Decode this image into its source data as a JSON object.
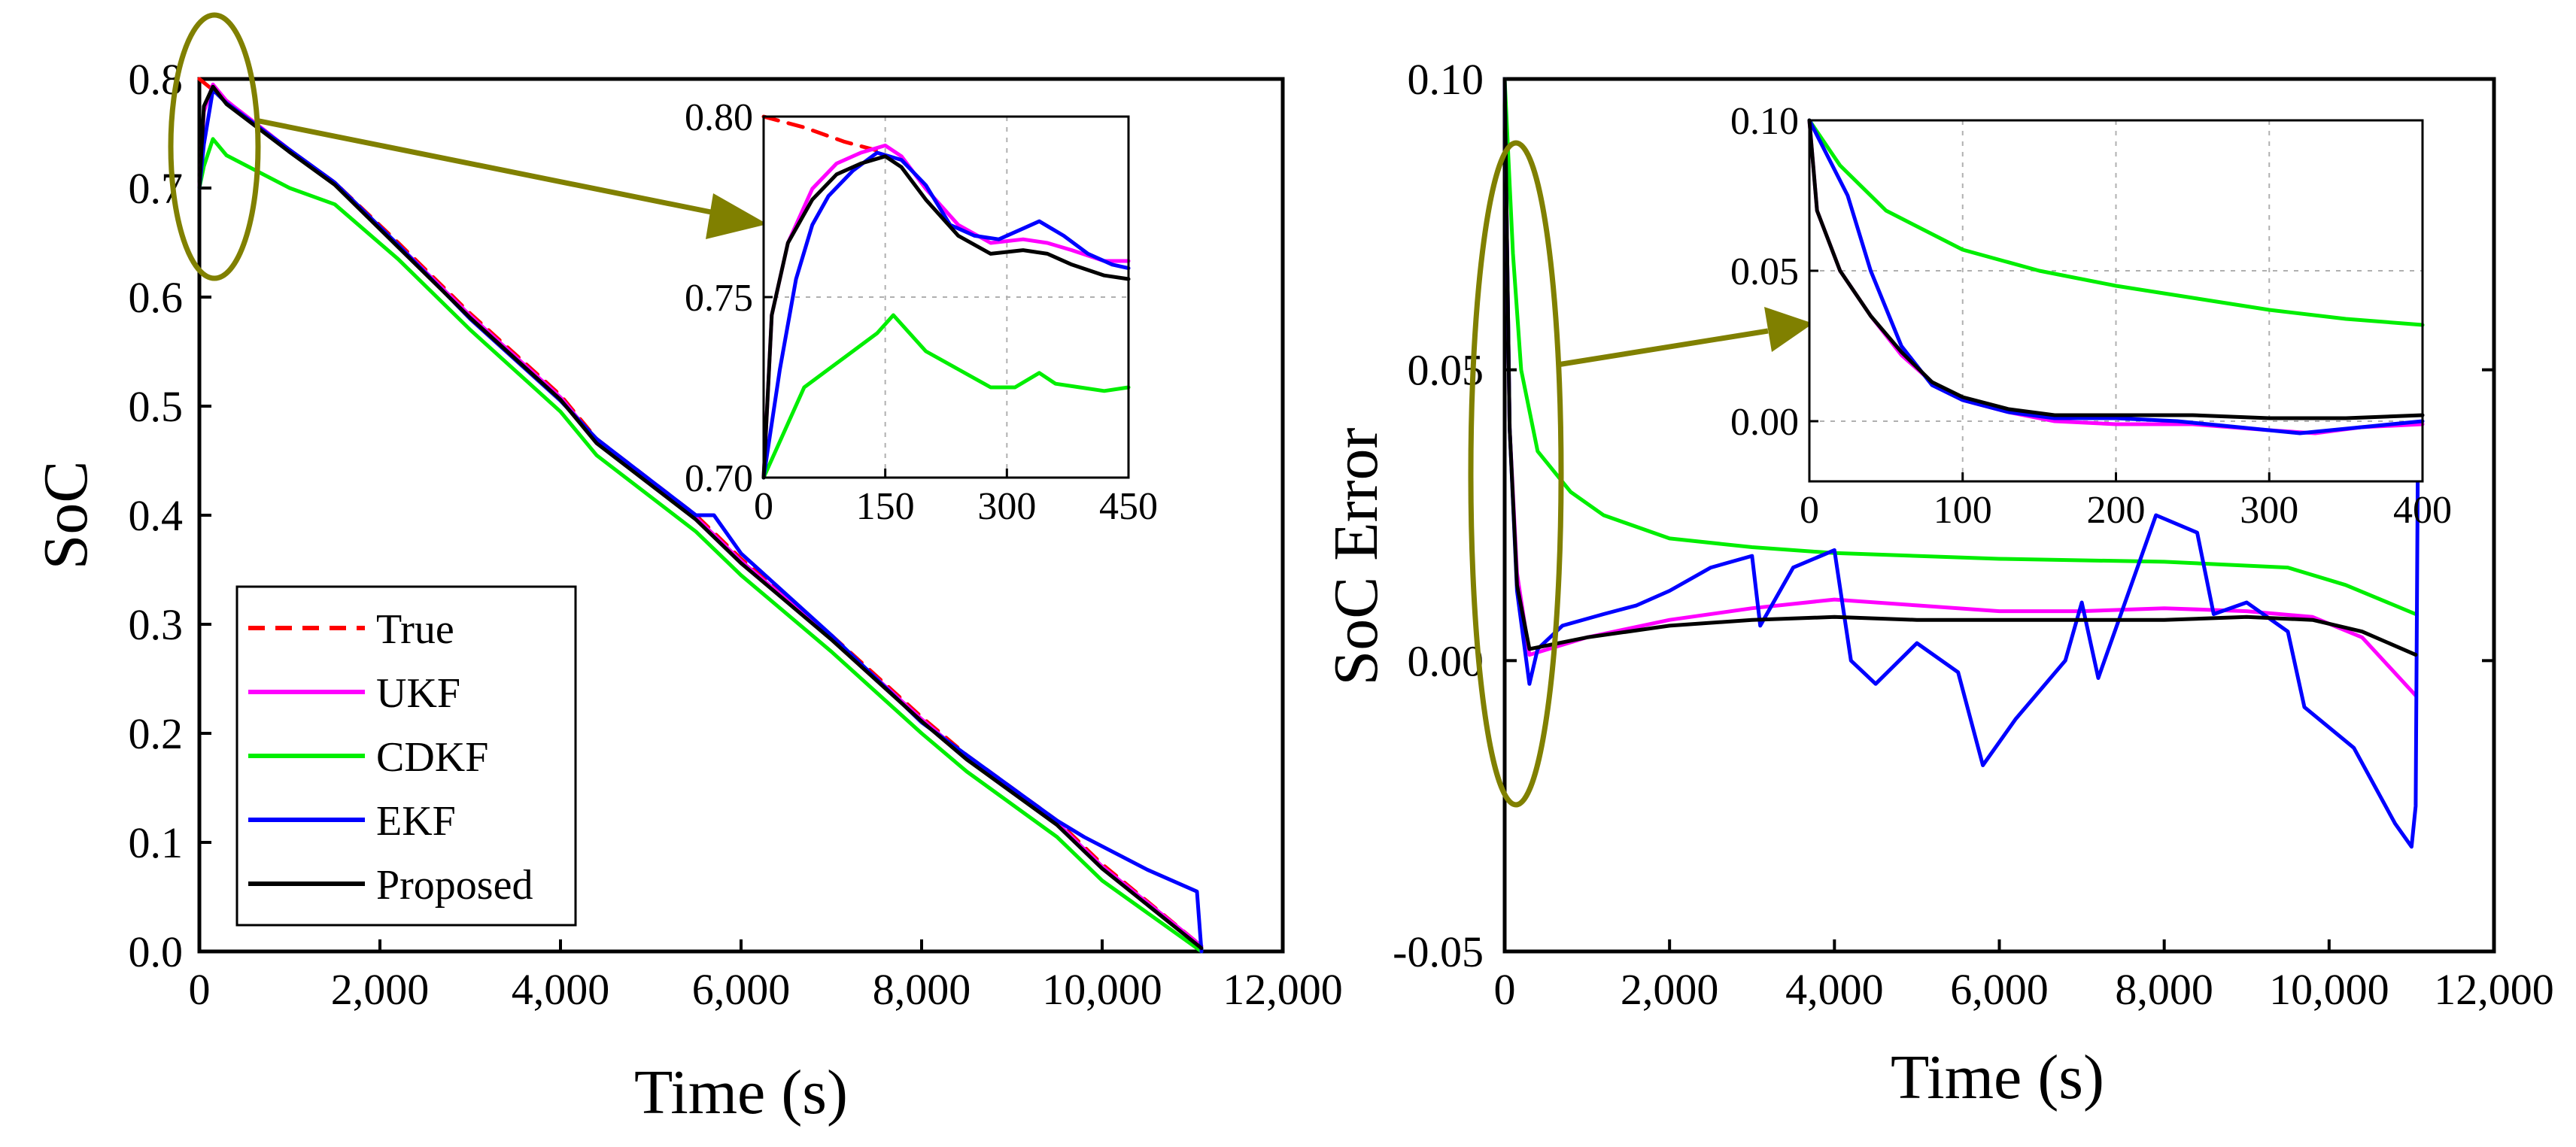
{
  "colors": {
    "True": "#ff0000",
    "UKF": "#ff00ff",
    "CDKF": "#00ee00",
    "EKF": "#0000ff",
    "Proposed": "#000000",
    "annotation": "#808000",
    "grid": "#b0b0b0"
  },
  "chart_data": [
    {
      "type": "line",
      "id": "soc",
      "xlabel": "Time (s)",
      "ylabel": "SoC",
      "xlim": [
        0,
        12000
      ],
      "ylim": [
        0,
        0.8
      ],
      "xticks": [
        0,
        2000,
        4000,
        6000,
        8000,
        10000,
        12000
      ],
      "xtick_labels": [
        "0",
        "2,000",
        "4,000",
        "6,000",
        "8,000",
        "10,000",
        "12,000"
      ],
      "yticks": [
        0,
        0.1,
        0.2,
        0.3,
        0.4,
        0.5,
        0.6,
        0.7,
        0.8
      ],
      "ytick_labels": [
        "0.0",
        "0.1",
        "0.2",
        "0.3",
        "0.4",
        "0.5",
        "0.6",
        "0.7",
        "0.8"
      ],
      "legend_position": "bottom-left",
      "legend": [
        "True",
        "UKF",
        "CDKF",
        "EKF",
        "Proposed"
      ],
      "series": [
        {
          "name": "True",
          "dash": "dashed",
          "x": [
            0,
            300,
            1000,
            1500,
            2200,
            3000,
            4000,
            4400,
            5500,
            6000,
            7000,
            8000,
            8500,
            9500,
            10000,
            11100
          ],
          "y": [
            0.8,
            0.78,
            0.735,
            0.705,
            0.65,
            0.585,
            0.51,
            0.47,
            0.4,
            0.36,
            0.29,
            0.215,
            0.18,
            0.12,
            0.08,
            0.005
          ]
        },
        {
          "name": "UKF",
          "x": [
            0,
            50,
            150,
            300,
            1000,
            1500,
            2200,
            3000,
            4000,
            4400,
            5500,
            6000,
            7000,
            8000,
            8500,
            9500,
            10000,
            11100
          ],
          "y": [
            0.7,
            0.77,
            0.795,
            0.78,
            0.735,
            0.705,
            0.648,
            0.583,
            0.508,
            0.468,
            0.398,
            0.358,
            0.288,
            0.213,
            0.178,
            0.118,
            0.078,
            0.005
          ]
        },
        {
          "name": "CDKF",
          "x": [
            0,
            50,
            150,
            300,
            1000,
            1500,
            2200,
            3000,
            4000,
            4400,
            5500,
            6000,
            7000,
            8000,
            8500,
            9500,
            10000,
            11100
          ],
          "y": [
            0.7,
            0.72,
            0.745,
            0.73,
            0.7,
            0.685,
            0.635,
            0.57,
            0.495,
            0.455,
            0.385,
            0.345,
            0.275,
            0.2,
            0.165,
            0.105,
            0.065,
            0.0
          ]
        },
        {
          "name": "EKF",
          "x": [
            0,
            50,
            150,
            300,
            1000,
            1500,
            2200,
            3000,
            4000,
            4400,
            5500,
            5700,
            6000,
            7000,
            8000,
            8500,
            9500,
            9800,
            10500,
            11050,
            11100
          ],
          "y": [
            0.7,
            0.74,
            0.79,
            0.778,
            0.735,
            0.705,
            0.648,
            0.58,
            0.505,
            0.47,
            0.4,
            0.4,
            0.365,
            0.29,
            0.21,
            0.18,
            0.12,
            0.105,
            0.075,
            0.055,
            0.0
          ]
        },
        {
          "name": "Proposed",
          "x": [
            0,
            50,
            150,
            300,
            1000,
            1500,
            2200,
            3000,
            4000,
            4400,
            5500,
            6000,
            7000,
            8000,
            8500,
            9500,
            10000,
            11100
          ],
          "y": [
            0.7,
            0.775,
            0.793,
            0.777,
            0.733,
            0.703,
            0.646,
            0.581,
            0.506,
            0.466,
            0.396,
            0.356,
            0.286,
            0.211,
            0.176,
            0.116,
            0.076,
            0.003
          ]
        }
      ],
      "inset": {
        "xlim": [
          0,
          450
        ],
        "ylim": [
          0.7,
          0.8
        ],
        "xticks": [
          0,
          150,
          300,
          450
        ],
        "xtick_labels": [
          "0",
          "150",
          "300",
          "450"
        ],
        "yticks": [
          0.7,
          0.75,
          0.8
        ],
        "ytick_labels": [
          "0.70",
          "0.75",
          "0.80"
        ],
        "grid": true,
        "series": [
          {
            "name": "True",
            "dash": "dashed",
            "x": [
              0,
              50,
              100,
              150
            ],
            "y": [
              0.8,
              0.797,
              0.793,
              0.79
            ]
          },
          {
            "name": "UKF",
            "x": [
              0,
              10,
              30,
              60,
              90,
              120,
              150,
              170,
              200,
              240,
              280,
              320,
              350,
              380,
              420,
              450
            ],
            "y": [
              0.7,
              0.745,
              0.765,
              0.78,
              0.787,
              0.79,
              0.792,
              0.789,
              0.78,
              0.77,
              0.765,
              0.766,
              0.765,
              0.763,
              0.76,
              0.76
            ]
          },
          {
            "name": "CDKF",
            "x": [
              0,
              20,
              50,
              80,
              110,
              140,
              160,
              180,
              200,
              240,
              280,
              310,
              340,
              360,
              390,
              420,
              450
            ],
            "y": [
              0.7,
              0.71,
              0.725,
              0.73,
              0.735,
              0.74,
              0.745,
              0.74,
              0.735,
              0.73,
              0.725,
              0.725,
              0.729,
              0.726,
              0.725,
              0.724,
              0.725
            ]
          },
          {
            "name": "EKF",
            "x": [
              0,
              20,
              40,
              60,
              80,
              110,
              140,
              170,
              200,
              230,
              260,
              290,
              320,
              340,
              370,
              400,
              430,
              450
            ],
            "y": [
              0.7,
              0.73,
              0.755,
              0.77,
              0.778,
              0.785,
              0.79,
              0.788,
              0.781,
              0.77,
              0.767,
              0.766,
              0.769,
              0.771,
              0.767,
              0.762,
              0.759,
              0.758
            ]
          },
          {
            "name": "Proposed",
            "x": [
              0,
              10,
              30,
              60,
              90,
              120,
              150,
              170,
              200,
              240,
              280,
              320,
              350,
              380,
              420,
              450
            ],
            "y": [
              0.7,
              0.745,
              0.765,
              0.777,
              0.784,
              0.787,
              0.789,
              0.786,
              0.777,
              0.767,
              0.762,
              0.763,
              0.762,
              0.759,
              0.756,
              0.755
            ]
          }
        ]
      }
    },
    {
      "type": "line",
      "id": "soc_error",
      "xlabel": "Time (s)",
      "ylabel": "SoC Error",
      "xlim": [
        0,
        12000
      ],
      "ylim": [
        -0.05,
        0.1
      ],
      "xticks": [
        0,
        2000,
        4000,
        6000,
        8000,
        10000,
        12000
      ],
      "xtick_labels": [
        "0",
        "2,000",
        "4,000",
        "6,000",
        "8,000",
        "10,000",
        "12,000"
      ],
      "yticks": [
        -0.05,
        0,
        0.05,
        0.1
      ],
      "ytick_labels": [
        "-0.05",
        "0.00",
        "0.05",
        "0.10"
      ],
      "series": [
        {
          "name": "UKF",
          "x": [
            0,
            60,
            150,
            300,
            1000,
            2000,
            3000,
            4000,
            5000,
            6000,
            7000,
            8000,
            9000,
            9800,
            10400,
            11050
          ],
          "y": [
            0.1,
            0.04,
            0.015,
            0.001,
            0.004,
            0.007,
            0.009,
            0.0105,
            0.0095,
            0.0085,
            0.0085,
            0.009,
            0.0085,
            0.0075,
            0.004,
            -0.006
          ]
        },
        {
          "name": "CDKF",
          "x": [
            0,
            100,
            200,
            400,
            800,
            1200,
            2000,
            3000,
            4000,
            6000,
            8000,
            9500,
            10200,
            11050
          ],
          "y": [
            0.1,
            0.07,
            0.05,
            0.036,
            0.029,
            0.025,
            0.021,
            0.0195,
            0.0185,
            0.0175,
            0.017,
            0.016,
            0.013,
            0.008
          ]
        },
        {
          "name": "EKF",
          "x": [
            0,
            60,
            150,
            300,
            400,
            700,
            1200,
            1600,
            2000,
            2500,
            3000,
            3100,
            3500,
            4000,
            4200,
            4500,
            5000,
            5500,
            5800,
            6200,
            6800,
            7000,
            7200,
            7900,
            8400,
            8600,
            9000,
            9500,
            9700,
            10300,
            10800,
            11000,
            11050,
            11080
          ],
          "y": [
            0.1,
            0.04,
            0.012,
            -0.004,
            0.002,
            0.006,
            0.008,
            0.0095,
            0.012,
            0.016,
            0.018,
            0.006,
            0.016,
            0.019,
            0.0,
            -0.004,
            0.003,
            -0.002,
            -0.018,
            -0.01,
            0.0,
            0.01,
            -0.003,
            0.025,
            0.022,
            0.008,
            0.01,
            0.005,
            -0.008,
            -0.015,
            -0.028,
            -0.032,
            -0.025,
            0.043
          ]
        },
        {
          "name": "Proposed",
          "x": [
            0,
            60,
            150,
            300,
            1000,
            2000,
            3000,
            4000,
            5000,
            6000,
            7000,
            8000,
            9000,
            9800,
            10400,
            11050
          ],
          "y": [
            0.1,
            0.04,
            0.013,
            0.002,
            0.004,
            0.006,
            0.007,
            0.0075,
            0.007,
            0.007,
            0.007,
            0.007,
            0.0075,
            0.007,
            0.005,
            0.001
          ]
        }
      ],
      "inset": {
        "xlim": [
          0,
          400
        ],
        "ylim": [
          -0.02,
          0.1
        ],
        "xticks": [
          0,
          100,
          200,
          300,
          400
        ],
        "xtick_labels": [
          "0",
          "100",
          "200",
          "300",
          "400"
        ],
        "yticks": [
          0,
          0.05,
          0.1
        ],
        "ytick_labels": [
          "0.00",
          "0.05",
          "0.10"
        ],
        "grid": true,
        "series": [
          {
            "name": "UKF",
            "x": [
              0,
              5,
              20,
              40,
              60,
              80,
              100,
              130,
              160,
              200,
              250,
              300,
              330,
              360,
              400
            ],
            "y": [
              0.1,
              0.07,
              0.05,
              0.035,
              0.022,
              0.013,
              0.007,
              0.003,
              0.0,
              -0.001,
              -0.001,
              -0.003,
              -0.004,
              -0.002,
              -0.001
            ]
          },
          {
            "name": "CDKF",
            "x": [
              0,
              20,
              50,
              100,
              150,
              200,
              250,
              300,
              350,
              400
            ],
            "y": [
              0.1,
              0.085,
              0.07,
              0.057,
              0.05,
              0.045,
              0.041,
              0.037,
              0.034,
              0.032
            ]
          },
          {
            "name": "EKF",
            "x": [
              0,
              10,
              25,
              40,
              60,
              80,
              100,
              130,
              160,
              200,
              240,
              280,
              320,
              360,
              400
            ],
            "y": [
              0.1,
              0.09,
              0.075,
              0.05,
              0.025,
              0.012,
              0.007,
              0.003,
              0.001,
              0.001,
              0.0,
              -0.002,
              -0.004,
              -0.002,
              0.0
            ]
          },
          {
            "name": "Proposed",
            "x": [
              0,
              5,
              20,
              40,
              60,
              80,
              100,
              130,
              160,
              200,
              250,
              300,
              350,
              400
            ],
            "y": [
              0.1,
              0.07,
              0.05,
              0.035,
              0.023,
              0.013,
              0.008,
              0.004,
              0.002,
              0.002,
              0.002,
              0.001,
              0.001,
              0.002
            ]
          }
        ]
      }
    }
  ]
}
